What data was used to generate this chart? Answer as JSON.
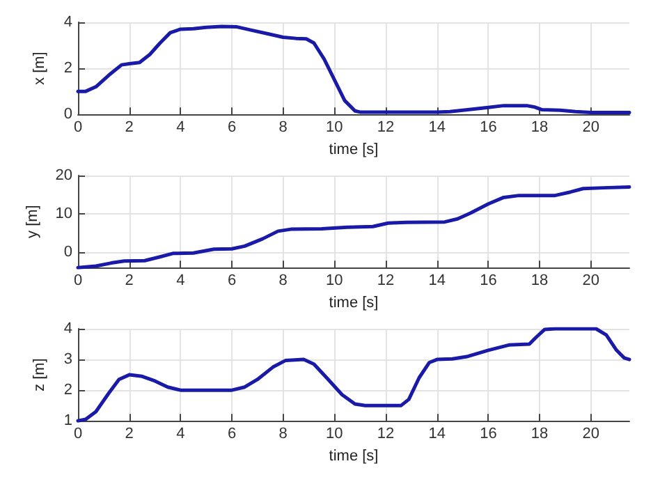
{
  "chart_data": [
    {
      "type": "line",
      "xlabel": "time [s]",
      "ylabel": "x [m]",
      "xlim": [
        0,
        21.5
      ],
      "xticks": [
        0,
        2,
        4,
        6,
        8,
        10,
        12,
        14,
        16,
        18,
        20
      ],
      "ylim": [
        0,
        4
      ],
      "yticks": [
        0,
        2,
        4
      ],
      "grid": true,
      "marker": "none",
      "color": "#1a1aa8",
      "x": [
        0,
        0.3,
        0.7,
        1.2,
        1.7,
        2,
        2.4,
        2.8,
        3.2,
        3.6,
        4,
        4.5,
        5,
        5.6,
        6.2,
        6.8,
        7.4,
        8,
        8.5,
        8.9,
        9.2,
        9.6,
        10,
        10.4,
        10.8,
        11,
        12,
        14,
        14.5,
        15.2,
        16,
        16.6,
        17.5,
        17.8,
        18.1,
        18.8,
        19.4,
        20,
        21.5
      ],
      "values": [
        1.0,
        1.0,
        1.2,
        1.7,
        2.15,
        2.2,
        2.25,
        2.6,
        3.1,
        3.55,
        3.7,
        3.72,
        3.78,
        3.82,
        3.8,
        3.65,
        3.5,
        3.35,
        3.3,
        3.28,
        3.1,
        2.4,
        1.5,
        0.6,
        0.15,
        0.1,
        0.1,
        0.1,
        0.12,
        0.2,
        0.3,
        0.38,
        0.38,
        0.32,
        0.2,
        0.18,
        0.12,
        0.08,
        0.08
      ]
    },
    {
      "type": "line",
      "xlabel": "time [s]",
      "ylabel": "y [m]",
      "xlim": [
        0,
        21.5
      ],
      "xticks": [
        0,
        2,
        4,
        6,
        8,
        10,
        12,
        14,
        16,
        18,
        20
      ],
      "ylim": [
        -4,
        20
      ],
      "yticks": [
        0,
        10,
        20
      ],
      "grid": true,
      "marker": "none",
      "color": "#1a1aa8",
      "x": [
        0,
        0.7,
        1.3,
        1.8,
        2.6,
        3.2,
        3.7,
        4.5,
        5.3,
        6,
        6.5,
        7.2,
        7.8,
        8.3,
        9.5,
        10.5,
        11.5,
        12.1,
        12.8,
        14.3,
        14.8,
        15.3,
        16,
        16.6,
        17.2,
        18.6,
        19.2,
        19.7,
        20.5,
        21.5
      ],
      "values": [
        -4,
        -3.6,
        -2.8,
        -2.3,
        -2.2,
        -1.2,
        -0.3,
        -0.2,
        0.8,
        0.9,
        1.6,
        3.5,
        5.5,
        6.0,
        6.1,
        6.5,
        6.7,
        7.6,
        7.8,
        7.9,
        8.7,
        10.2,
        12.6,
        14.3,
        14.8,
        14.8,
        15.7,
        16.6,
        16.8,
        17.0
      ]
    },
    {
      "type": "line",
      "xlabel": "time [s]",
      "ylabel": "z [m]",
      "xlim": [
        0,
        21.5
      ],
      "xticks": [
        0,
        2,
        4,
        6,
        8,
        10,
        12,
        14,
        16,
        18,
        20
      ],
      "ylim": [
        1,
        4
      ],
      "yticks": [
        1,
        2,
        3,
        4
      ],
      "grid": true,
      "marker": "none",
      "color": "#1a1aa8",
      "x": [
        0,
        0.3,
        0.7,
        1.2,
        1.6,
        2,
        2.5,
        3,
        3.5,
        4,
        6,
        6.5,
        7,
        7.6,
        8.1,
        8.8,
        9.2,
        9.7,
        10.3,
        10.8,
        11.2,
        12.6,
        12.9,
        13.3,
        13.7,
        14,
        14.6,
        15.2,
        16,
        16.8,
        17.6,
        17.9,
        18.2,
        18.6,
        20.2,
        20.6,
        21,
        21.3,
        21.5
      ],
      "values": [
        1.0,
        1.05,
        1.3,
        1.9,
        2.35,
        2.5,
        2.45,
        2.3,
        2.1,
        2.0,
        2.0,
        2.1,
        2.35,
        2.75,
        2.97,
        3.0,
        2.85,
        2.4,
        1.85,
        1.55,
        1.5,
        1.5,
        1.7,
        2.4,
        2.9,
        3.0,
        3.02,
        3.1,
        3.3,
        3.47,
        3.5,
        3.75,
        3.98,
        4.0,
        4.0,
        3.8,
        3.3,
        3.05,
        3.0
      ]
    }
  ]
}
